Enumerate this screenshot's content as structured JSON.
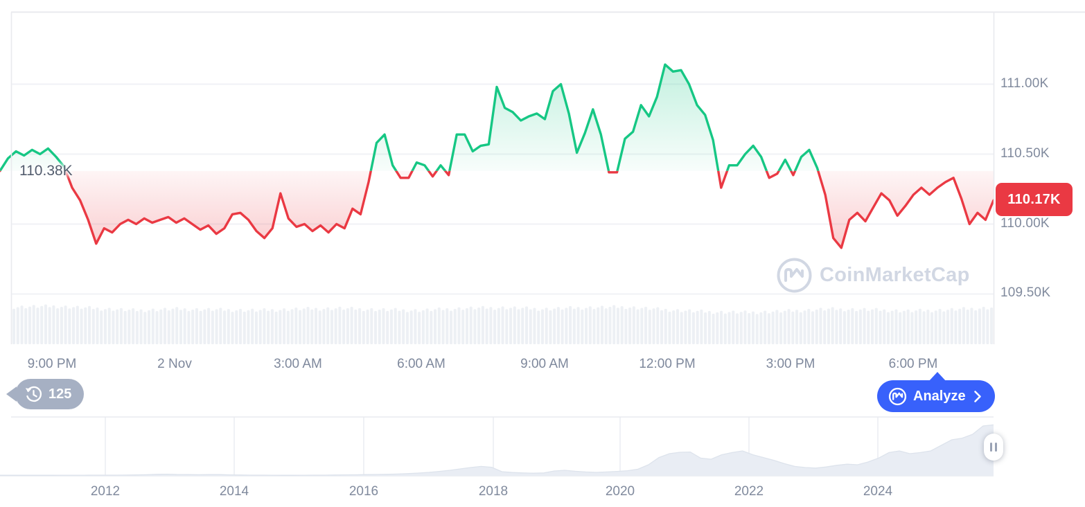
{
  "price_chart": {
    "baseline_label": "110.38K",
    "current_price_label": "110.17K",
    "y_axis": [
      "111.00K",
      "110.50K",
      "110.00K",
      "109.50K"
    ],
    "x_axis": [
      "9:00 PM",
      "2 Nov",
      "3:00 AM",
      "6:00 AM",
      "9:00 AM",
      "12:00 PM",
      "3:00 PM",
      "6:00 PM"
    ]
  },
  "history_badge": {
    "count": "125"
  },
  "analyze_button": {
    "label": "Analyze"
  },
  "watermark": {
    "text": "CoinMarketCap"
  },
  "range_chart": {
    "years": [
      "2012",
      "2014",
      "2016",
      "2018",
      "2020",
      "2022",
      "2024"
    ]
  },
  "colors": {
    "green": "#16c784",
    "red": "#ea3943",
    "blue": "#3861fb",
    "axis_text": "#808a9d",
    "badge_gray": "#a6b0c3",
    "watermark_gray": "#d1d7e3",
    "grid": "#f0f2f6",
    "border": "#e9eaee",
    "volume_bar": "#edf0f4",
    "range_fill": "#e9edf4"
  },
  "chart_data": [
    {
      "type": "line",
      "title": "BTC intraday price (1-2 Nov)",
      "unit": "thousand USD",
      "baseline": 110.38,
      "current": 110.17,
      "ylim": [
        109.5,
        111.5
      ],
      "y_ticks": [
        111.0,
        110.5,
        110.0,
        109.5
      ],
      "x_tick_labels": [
        "9:00 PM",
        "2 Nov",
        "3:00 AM",
        "6:00 AM",
        "9:00 AM",
        "12:00 PM",
        "3:00 PM",
        "6:00 PM"
      ],
      "legend": "none",
      "grid": "horizontal",
      "points": [
        110.38,
        110.47,
        110.52,
        110.49,
        110.53,
        110.5,
        110.54,
        110.48,
        110.41,
        110.26,
        110.17,
        110.03,
        109.86,
        109.97,
        109.94,
        110.0,
        110.03,
        110.0,
        110.04,
        110.01,
        110.03,
        110.05,
        110.01,
        110.04,
        110.0,
        109.96,
        109.99,
        109.93,
        109.97,
        110.07,
        110.08,
        110.03,
        109.95,
        109.9,
        109.97,
        110.22,
        110.04,
        109.98,
        110.0,
        109.95,
        109.99,
        109.94,
        110.0,
        109.97,
        110.11,
        110.07,
        110.3,
        110.58,
        110.64,
        110.42,
        110.33,
        110.33,
        110.44,
        110.42,
        110.34,
        110.42,
        110.35,
        110.64,
        110.64,
        110.52,
        110.56,
        110.57,
        110.98,
        110.83,
        110.8,
        110.74,
        110.77,
        110.79,
        110.75,
        110.95,
        111.0,
        110.79,
        110.51,
        110.65,
        110.82,
        110.64,
        110.37,
        110.37,
        110.61,
        110.66,
        110.85,
        110.77,
        110.91,
        111.14,
        111.09,
        111.1,
        111.0,
        110.85,
        110.78,
        110.6,
        110.26,
        110.42,
        110.42,
        110.5,
        110.56,
        110.48,
        110.33,
        110.36,
        110.46,
        110.35,
        110.48,
        110.53,
        110.4,
        110.21,
        109.9,
        109.83,
        110.03,
        110.08,
        110.02,
        110.12,
        110.22,
        110.17,
        110.06,
        110.13,
        110.21,
        110.26,
        110.21,
        110.26,
        110.3,
        110.33,
        110.18,
        110.0,
        110.08,
        110.03,
        110.17
      ],
      "volume_profile": [
        54,
        55,
        52,
        49,
        51,
        50,
        49,
        51,
        52,
        50,
        49,
        52,
        53,
        51,
        53,
        54,
        50,
        47,
        46,
        48,
        51,
        50,
        48,
        50,
        53
      ]
    },
    {
      "type": "area",
      "title": "All-time range selector",
      "x_tick_labels": [
        "2012",
        "2014",
        "2016",
        "2018",
        "2020",
        "2022",
        "2024"
      ],
      "values_normalized": [
        0.01,
        0.01,
        0.01,
        0.01,
        0.01,
        0.01,
        0.011,
        0.011,
        0.011,
        0.012,
        0.012,
        0.013,
        0.014,
        0.016,
        0.02,
        0.027,
        0.03,
        0.024,
        0.022,
        0.02,
        0.022,
        0.023,
        0.018,
        0.015,
        0.013,
        0.012,
        0.011,
        0.01,
        0.01,
        0.011,
        0.012,
        0.013,
        0.015,
        0.017,
        0.019,
        0.022,
        0.025,
        0.028,
        0.032,
        0.04,
        0.05,
        0.062,
        0.08,
        0.1,
        0.125,
        0.15,
        0.17,
        0.155,
        0.075,
        0.06,
        0.052,
        0.047,
        0.052,
        0.088,
        0.1,
        0.082,
        0.07,
        0.062,
        0.07,
        0.08,
        0.092,
        0.12,
        0.2,
        0.33,
        0.4,
        0.425,
        0.43,
        0.32,
        0.3,
        0.38,
        0.42,
        0.45,
        0.38,
        0.33,
        0.28,
        0.22,
        0.17,
        0.15,
        0.14,
        0.16,
        0.19,
        0.21,
        0.2,
        0.25,
        0.32,
        0.42,
        0.45,
        0.4,
        0.42,
        0.45,
        0.55,
        0.65,
        0.68,
        0.75,
        0.9,
        0.92
      ]
    }
  ]
}
